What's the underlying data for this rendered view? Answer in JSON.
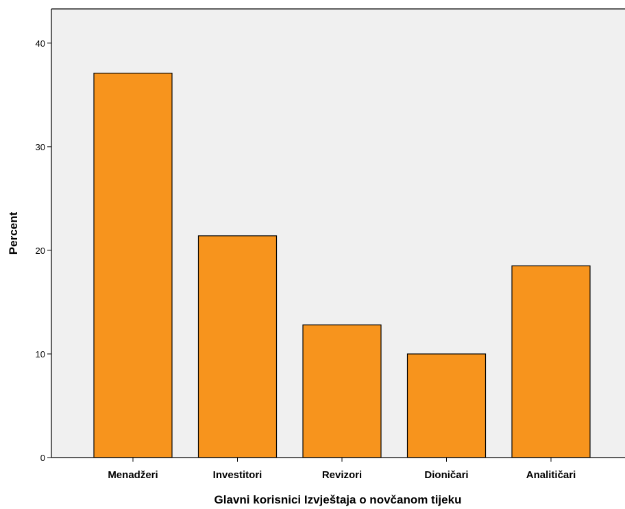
{
  "chart_data": {
    "type": "bar",
    "categories": [
      "Menadžeri",
      "Investitori",
      "Revizori",
      "Dioničari",
      "Analitičari"
    ],
    "values": [
      37.1,
      21.4,
      12.8,
      10.0,
      18.5
    ],
    "xlabel": "Glavni korisnici Izvještaja o novčanom tijeku",
    "ylabel": "Percent",
    "ylim": [
      0,
      40
    ],
    "yticks": [
      "0",
      "10",
      "20",
      "30",
      "40"
    ],
    "grid": false,
    "colors": {
      "bar_fill": "#f7941d",
      "bar_stroke": "#000000",
      "plot_background": "#f0f0f0",
      "axis": "#000000"
    }
  }
}
